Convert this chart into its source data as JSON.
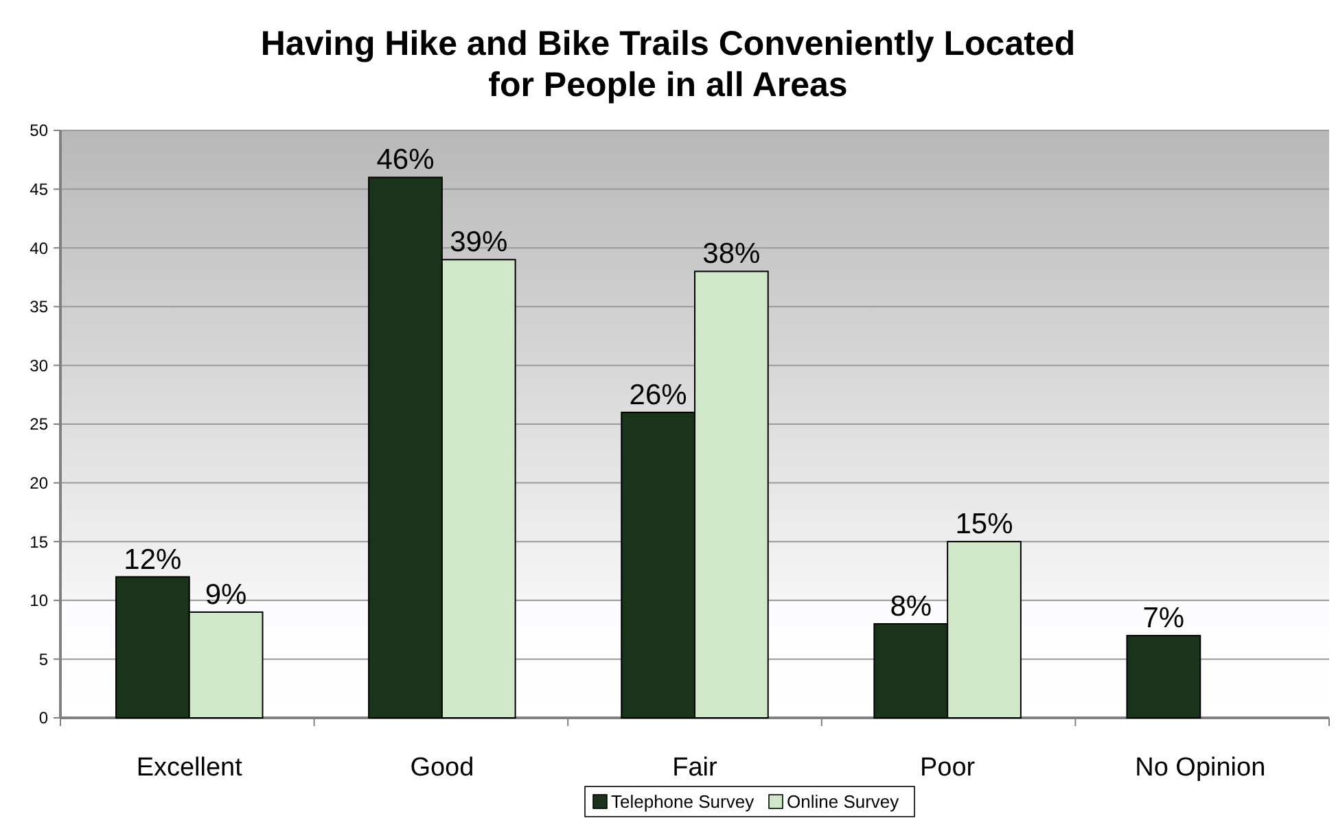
{
  "chart_data": {
    "type": "bar",
    "title": "Having Hike and Bike Trails Conveniently Located for People in all Areas",
    "categories": [
      "Excellent",
      "Good",
      "Fair",
      "Poor",
      "No Opinion"
    ],
    "series": [
      {
        "name": "Telephone Survey",
        "color": "#1a331a",
        "values": [
          12,
          46,
          26,
          8,
          7
        ],
        "value_labels": [
          "12%",
          "46%",
          "26%",
          "8%",
          "7%"
        ]
      },
      {
        "name": "Online Survey",
        "color": "#cfe8c8",
        "values": [
          9,
          39,
          38,
          15,
          null
        ],
        "value_labels": [
          "9%",
          "39%",
          "38%",
          "15%",
          null
        ]
      }
    ],
    "ylim": [
      0,
      50
    ],
    "yticks": [
      0,
      5,
      10,
      15,
      20,
      25,
      30,
      35,
      40,
      45,
      50
    ],
    "grid": "y",
    "legend": "bottom"
  }
}
